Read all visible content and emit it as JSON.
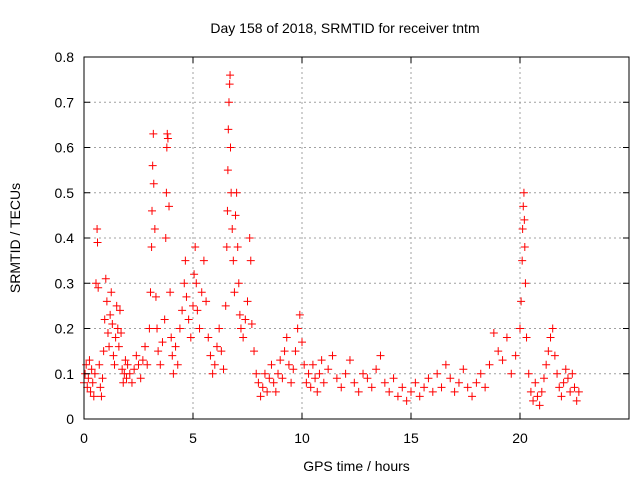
{
  "chart_data": {
    "type": "scatter",
    "title": "Day 158 of 2018, SRMTID for receiver tntm",
    "xlabel": "GPS time / hours",
    "ylabel": "SRMTID / TECUs",
    "xlim": [
      0,
      25
    ],
    "ylim": [
      0,
      0.8
    ],
    "x_ticks": [
      0,
      5,
      10,
      15,
      20
    ],
    "x_tick_labels": [
      "0",
      "5",
      "10",
      "15",
      "20"
    ],
    "y_ticks": [
      0,
      0.1,
      0.2,
      0.3,
      0.4,
      0.5,
      0.6,
      0.7,
      0.8
    ],
    "y_tick_labels": [
      "0",
      "0.1",
      "0.2",
      "0.3",
      "0.4",
      "0.5",
      "0.6",
      "0.7",
      "0.8"
    ],
    "grid": true,
    "marker": "+",
    "series": [
      {
        "name": "SRMTID",
        "color": "#ff0000",
        "points": [
          [
            0.0,
            0.08
          ],
          [
            0.05,
            0.1
          ],
          [
            0.1,
            0.12
          ],
          [
            0.15,
            0.07
          ],
          [
            0.2,
            0.09
          ],
          [
            0.25,
            0.13
          ],
          [
            0.3,
            0.06
          ],
          [
            0.35,
            0.11
          ],
          [
            0.4,
            0.08
          ],
          [
            0.45,
            0.05
          ],
          [
            0.5,
            0.1
          ],
          [
            0.55,
            0.3
          ],
          [
            0.6,
            0.42
          ],
          [
            0.62,
            0.39
          ],
          [
            0.65,
            0.29
          ],
          [
            0.7,
            0.12
          ],
          [
            0.75,
            0.07
          ],
          [
            0.8,
            0.05
          ],
          [
            0.85,
            0.09
          ],
          [
            0.9,
            0.15
          ],
          [
            0.95,
            0.22
          ],
          [
            1.0,
            0.31
          ],
          [
            1.05,
            0.26
          ],
          [
            1.1,
            0.19
          ],
          [
            1.15,
            0.16
          ],
          [
            1.2,
            0.23
          ],
          [
            1.25,
            0.28
          ],
          [
            1.3,
            0.21
          ],
          [
            1.35,
            0.14
          ],
          [
            1.4,
            0.12
          ],
          [
            1.45,
            0.18
          ],
          [
            1.5,
            0.25
          ],
          [
            1.55,
            0.2
          ],
          [
            1.6,
            0.16
          ],
          [
            1.65,
            0.24
          ],
          [
            1.7,
            0.19
          ],
          [
            1.75,
            0.11
          ],
          [
            1.8,
            0.08
          ],
          [
            1.85,
            0.1
          ],
          [
            1.9,
            0.13
          ],
          [
            1.95,
            0.09
          ],
          [
            2.0,
            0.12
          ],
          [
            2.1,
            0.1
          ],
          [
            2.2,
            0.08
          ],
          [
            2.3,
            0.11
          ],
          [
            2.4,
            0.14
          ],
          [
            2.5,
            0.12
          ],
          [
            2.6,
            0.09
          ],
          [
            2.7,
            0.13
          ],
          [
            2.8,
            0.16
          ],
          [
            2.9,
            0.12
          ],
          [
            3.0,
            0.2
          ],
          [
            3.05,
            0.28
          ],
          [
            3.1,
            0.38
          ],
          [
            3.12,
            0.46
          ],
          [
            3.15,
            0.56
          ],
          [
            3.18,
            0.63
          ],
          [
            3.2,
            0.52
          ],
          [
            3.25,
            0.42
          ],
          [
            3.3,
            0.27
          ],
          [
            3.35,
            0.2
          ],
          [
            3.4,
            0.15
          ],
          [
            3.5,
            0.12
          ],
          [
            3.6,
            0.17
          ],
          [
            3.7,
            0.22
          ],
          [
            3.75,
            0.4
          ],
          [
            3.78,
            0.5
          ],
          [
            3.8,
            0.6
          ],
          [
            3.82,
            0.63
          ],
          [
            3.85,
            0.62
          ],
          [
            3.9,
            0.47
          ],
          [
            3.95,
            0.28
          ],
          [
            4.0,
            0.18
          ],
          [
            4.05,
            0.14
          ],
          [
            4.1,
            0.1
          ],
          [
            4.2,
            0.16
          ],
          [
            4.3,
            0.12
          ],
          [
            4.4,
            0.2
          ],
          [
            4.5,
            0.24
          ],
          [
            4.6,
            0.3
          ],
          [
            4.65,
            0.35
          ],
          [
            4.7,
            0.27
          ],
          [
            4.8,
            0.22
          ],
          [
            4.9,
            0.18
          ],
          [
            5.0,
            0.25
          ],
          [
            5.05,
            0.32
          ],
          [
            5.1,
            0.38
          ],
          [
            5.15,
            0.3
          ],
          [
            5.2,
            0.24
          ],
          [
            5.3,
            0.2
          ],
          [
            5.4,
            0.28
          ],
          [
            5.5,
            0.35
          ],
          [
            5.6,
            0.26
          ],
          [
            5.7,
            0.18
          ],
          [
            5.8,
            0.14
          ],
          [
            5.9,
            0.1
          ],
          [
            6.0,
            0.12
          ],
          [
            6.1,
            0.16
          ],
          [
            6.2,
            0.2
          ],
          [
            6.3,
            0.15
          ],
          [
            6.4,
            0.11
          ],
          [
            6.5,
            0.25
          ],
          [
            6.55,
            0.38
          ],
          [
            6.58,
            0.46
          ],
          [
            6.6,
            0.55
          ],
          [
            6.62,
            0.64
          ],
          [
            6.65,
            0.7
          ],
          [
            6.68,
            0.74
          ],
          [
            6.7,
            0.76
          ],
          [
            6.72,
            0.6
          ],
          [
            6.75,
            0.5
          ],
          [
            6.8,
            0.42
          ],
          [
            6.85,
            0.35
          ],
          [
            6.9,
            0.28
          ],
          [
            6.95,
            0.45
          ],
          [
            7.0,
            0.5
          ],
          [
            7.05,
            0.38
          ],
          [
            7.1,
            0.3
          ],
          [
            7.15,
            0.23
          ],
          [
            7.2,
            0.2
          ],
          [
            7.3,
            0.18
          ],
          [
            7.4,
            0.22
          ],
          [
            7.5,
            0.26
          ],
          [
            7.6,
            0.4
          ],
          [
            7.65,
            0.35
          ],
          [
            7.7,
            0.21
          ],
          [
            7.8,
            0.15
          ],
          [
            7.9,
            0.1
          ],
          [
            8.0,
            0.08
          ],
          [
            8.1,
            0.05
          ],
          [
            8.2,
            0.07
          ],
          [
            8.3,
            0.1
          ],
          [
            8.4,
            0.06
          ],
          [
            8.5,
            0.09
          ],
          [
            8.6,
            0.12
          ],
          [
            8.7,
            0.08
          ],
          [
            8.8,
            0.06
          ],
          [
            8.9,
            0.1
          ],
          [
            9.0,
            0.13
          ],
          [
            9.1,
            0.09
          ],
          [
            9.2,
            0.15
          ],
          [
            9.3,
            0.18
          ],
          [
            9.4,
            0.12
          ],
          [
            9.5,
            0.08
          ],
          [
            9.6,
            0.11
          ],
          [
            9.7,
            0.15
          ],
          [
            9.8,
            0.2
          ],
          [
            9.9,
            0.23
          ],
          [
            10.0,
            0.17
          ],
          [
            10.1,
            0.12
          ],
          [
            10.2,
            0.08
          ],
          [
            10.3,
            0.1
          ],
          [
            10.4,
            0.07
          ],
          [
            10.5,
            0.12
          ],
          [
            10.6,
            0.09
          ],
          [
            10.7,
            0.06
          ],
          [
            10.8,
            0.1
          ],
          [
            10.9,
            0.13
          ],
          [
            11.0,
            0.08
          ],
          [
            11.2,
            0.11
          ],
          [
            11.4,
            0.14
          ],
          [
            11.6,
            0.09
          ],
          [
            11.8,
            0.07
          ],
          [
            12.0,
            0.1
          ],
          [
            12.2,
            0.13
          ],
          [
            12.4,
            0.08
          ],
          [
            12.6,
            0.06
          ],
          [
            12.8,
            0.1
          ],
          [
            13.0,
            0.09
          ],
          [
            13.2,
            0.07
          ],
          [
            13.4,
            0.11
          ],
          [
            13.6,
            0.14
          ],
          [
            13.8,
            0.08
          ],
          [
            14.0,
            0.06
          ],
          [
            14.2,
            0.09
          ],
          [
            14.4,
            0.05
          ],
          [
            14.6,
            0.07
          ],
          [
            14.8,
            0.04
          ],
          [
            15.0,
            0.06
          ],
          [
            15.2,
            0.08
          ],
          [
            15.4,
            0.05
          ],
          [
            15.6,
            0.07
          ],
          [
            15.8,
            0.09
          ],
          [
            16.0,
            0.06
          ],
          [
            16.2,
            0.1
          ],
          [
            16.4,
            0.07
          ],
          [
            16.6,
            0.12
          ],
          [
            16.8,
            0.09
          ],
          [
            17.0,
            0.06
          ],
          [
            17.2,
            0.08
          ],
          [
            17.4,
            0.11
          ],
          [
            17.6,
            0.07
          ],
          [
            17.8,
            0.05
          ],
          [
            18.0,
            0.08
          ],
          [
            18.2,
            0.1
          ],
          [
            18.4,
            0.07
          ],
          [
            18.6,
            0.12
          ],
          [
            18.8,
            0.19
          ],
          [
            19.0,
            0.15
          ],
          [
            19.2,
            0.13
          ],
          [
            19.4,
            0.18
          ],
          [
            19.6,
            0.1
          ],
          [
            19.8,
            0.14
          ],
          [
            20.0,
            0.2
          ],
          [
            20.05,
            0.26
          ],
          [
            20.1,
            0.35
          ],
          [
            20.12,
            0.42
          ],
          [
            20.15,
            0.47
          ],
          [
            20.18,
            0.5
          ],
          [
            20.2,
            0.44
          ],
          [
            20.22,
            0.38
          ],
          [
            20.25,
            0.3
          ],
          [
            20.3,
            0.18
          ],
          [
            20.4,
            0.1
          ],
          [
            20.5,
            0.06
          ],
          [
            20.6,
            0.04
          ],
          [
            20.7,
            0.08
          ],
          [
            20.8,
            0.05
          ],
          [
            20.9,
            0.03
          ],
          [
            21.0,
            0.06
          ],
          [
            21.1,
            0.09
          ],
          [
            21.2,
            0.12
          ],
          [
            21.3,
            0.15
          ],
          [
            21.4,
            0.18
          ],
          [
            21.5,
            0.2
          ],
          [
            21.6,
            0.14
          ],
          [
            21.7,
            0.1
          ],
          [
            21.8,
            0.07
          ],
          [
            21.9,
            0.05
          ],
          [
            22.0,
            0.08
          ],
          [
            22.1,
            0.11
          ],
          [
            22.2,
            0.09
          ],
          [
            22.3,
            0.06
          ],
          [
            22.4,
            0.1
          ],
          [
            22.5,
            0.07
          ],
          [
            22.6,
            0.04
          ],
          [
            22.7,
            0.06
          ]
        ]
      }
    ]
  }
}
